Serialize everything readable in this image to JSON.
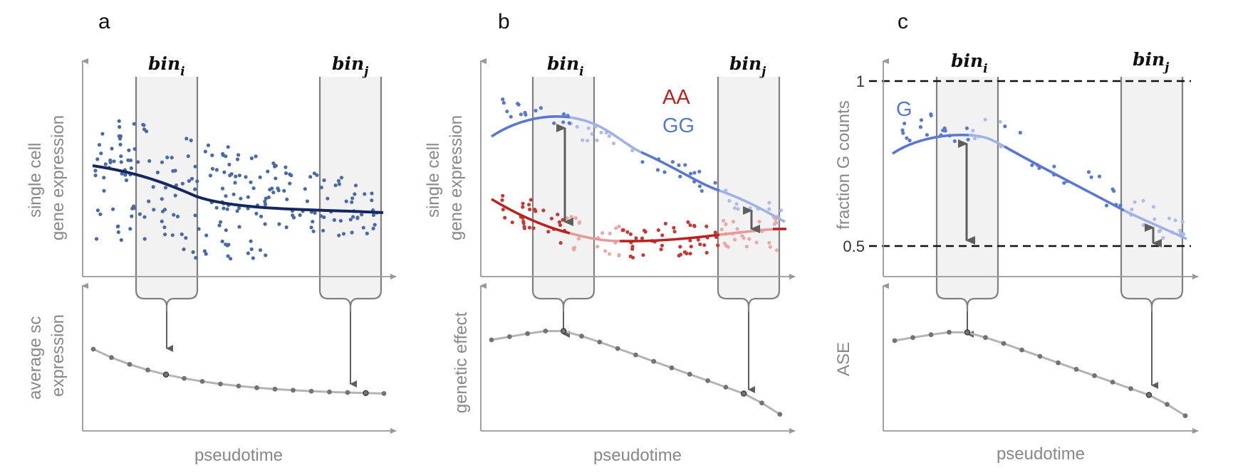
{
  "colors": {
    "axis": "#999999",
    "dark_blue": "#14275e",
    "scatter_blue": "#4a6aa5",
    "gg_blue": "#5a78d0",
    "gg_blue_light": "#9fb2e4",
    "aa_red": "#b8231f",
    "aa_red_light": "#e49a98",
    "bin_fill": "#f2f2f2",
    "bin_stroke": "#808080",
    "arrow": "#5e5e5e",
    "summary_line": "#b4b4b4",
    "summary_dot": "#737373",
    "dashed": "#111111"
  },
  "panels": [
    {
      "id": "a",
      "letter": "a",
      "top_ylabel": [
        "single cell",
        "gene expression"
      ],
      "bottom_ylabel": [
        "average sc",
        "expression"
      ],
      "xlabel": "pseudotime",
      "bin_i": {
        "base": "bin",
        "sub": "i"
      },
      "bin_j": {
        "base": "bin",
        "sub": "j"
      }
    },
    {
      "id": "b",
      "letter": "b",
      "top_ylabel": [
        "single cell",
        "gene expression"
      ],
      "bottom_ylabel": [
        "genetic effect"
      ],
      "xlabel": "pseudotime",
      "legend": [
        {
          "label": "AA",
          "color": "#b8231f"
        },
        {
          "label": "GG",
          "color": "#5a78d0"
        }
      ],
      "bin_i": {
        "base": "bin",
        "sub": "i"
      },
      "bin_j": {
        "base": "bin",
        "sub": "j"
      }
    },
    {
      "id": "c",
      "letter": "c",
      "top_ylabel": [
        "fraction G counts"
      ],
      "bottom_ylabel": [
        "ASE"
      ],
      "xlabel": "pseudotime",
      "series_label": "G",
      "ticks": [
        "1",
        "0.5"
      ],
      "bin_i": {
        "base": "bin",
        "sub": "i"
      },
      "bin_j": {
        "base": "bin",
        "sub": "j"
      }
    }
  ]
}
